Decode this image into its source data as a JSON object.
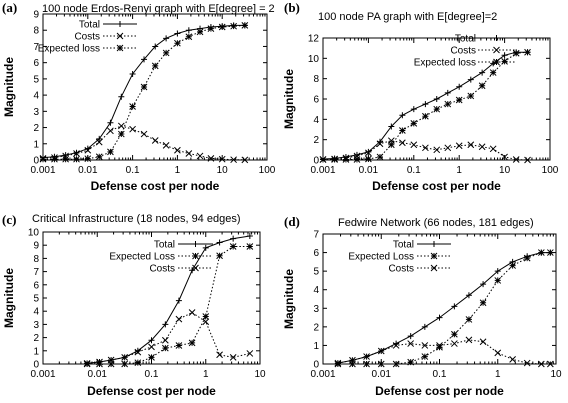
{
  "chart_data": [
    {
      "panel": "(a)",
      "type": "line",
      "title": "100 node Erdos-Renyi graph with E[degree] = 2",
      "xlabel": "Defense cost per node",
      "ylabel": "Magnitude",
      "xscale": "log",
      "xlim": [
        0.001,
        100
      ],
      "ylim": [
        0,
        9
      ],
      "xticks": [
        "0.001",
        "0.01",
        "0.1",
        "1",
        "10",
        "100"
      ],
      "yticks": [
        "0",
        "1",
        "2",
        "3",
        "4",
        "5",
        "6",
        "7",
        "8",
        "9"
      ],
      "legend_position": "top-left",
      "series": [
        {
          "name": "Total",
          "style": "solid",
          "marker": "plus",
          "x": [
            0.001,
            0.0018,
            0.0032,
            0.0056,
            0.01,
            0.018,
            0.032,
            0.056,
            0.1,
            0.18,
            0.32,
            0.56,
            1,
            1.8,
            3.2,
            5.6,
            10,
            18,
            32
          ],
          "y": [
            0.15,
            0.2,
            0.3,
            0.45,
            0.7,
            1.3,
            2.3,
            3.9,
            5.3,
            6.2,
            7.0,
            7.5,
            7.8,
            8.0,
            8.1,
            8.2,
            8.25,
            8.3,
            8.3
          ]
        },
        {
          "name": "Costs",
          "style": "dotted",
          "marker": "x",
          "x": [
            0.001,
            0.0018,
            0.0032,
            0.0056,
            0.01,
            0.018,
            0.032,
            0.056,
            0.1,
            0.18,
            0.32,
            0.56,
            1,
            1.8,
            3.2,
            5.6,
            10,
            18,
            32
          ],
          "y": [
            0.1,
            0.15,
            0.25,
            0.4,
            0.6,
            1.1,
            1.8,
            2.1,
            1.9,
            1.6,
            1.2,
            0.9,
            0.6,
            0.4,
            0.25,
            0.1,
            0.05,
            0.02,
            0.01
          ]
        },
        {
          "name": "Expected loss",
          "style": "dotted",
          "marker": "star",
          "x": [
            0.001,
            0.0018,
            0.0032,
            0.0056,
            0.01,
            0.018,
            0.032,
            0.056,
            0.1,
            0.18,
            0.32,
            0.56,
            1,
            1.8,
            3.2,
            5.6,
            10,
            18,
            32
          ],
          "y": [
            0.05,
            0.05,
            0.05,
            0.05,
            0.08,
            0.2,
            0.5,
            1.6,
            3.3,
            4.5,
            5.8,
            6.6,
            7.2,
            7.6,
            7.9,
            8.1,
            8.2,
            8.25,
            8.3
          ]
        }
      ]
    },
    {
      "panel": "(b)",
      "type": "line",
      "title": "100 node PA graph with E[degree]=2",
      "xlabel": "Defense cost per node",
      "ylabel": "Magnitude",
      "xscale": "log",
      "xlim": [
        0.001,
        100
      ],
      "ylim": [
        0,
        12
      ],
      "xticks": [
        "0.001",
        "0.01",
        "0.1",
        "1",
        "10",
        "100"
      ],
      "yticks": [
        "0",
        "2",
        "4",
        "6",
        "8",
        "10",
        "12"
      ],
      "legend_position": "top-right",
      "series": [
        {
          "name": "Total",
          "style": "solid",
          "marker": "plus",
          "x": [
            0.001,
            0.0018,
            0.0032,
            0.0056,
            0.01,
            0.018,
            0.032,
            0.056,
            0.1,
            0.18,
            0.32,
            0.56,
            1,
            1.8,
            3.2,
            5.6,
            10,
            18,
            32
          ],
          "y": [
            0.1,
            0.15,
            0.3,
            0.5,
            0.8,
            1.8,
            3.3,
            4.4,
            5.0,
            5.5,
            6.0,
            6.6,
            7.2,
            7.9,
            8.6,
            9.5,
            10.3,
            10.6,
            10.6
          ]
        },
        {
          "name": "Costs",
          "style": "dotted",
          "marker": "x",
          "x": [
            0.001,
            0.0018,
            0.0032,
            0.0056,
            0.01,
            0.018,
            0.032,
            0.056,
            0.1,
            0.18,
            0.32,
            0.56,
            1,
            1.8,
            3.2,
            5.6,
            10,
            18,
            32
          ],
          "y": [
            0.05,
            0.1,
            0.2,
            0.4,
            0.7,
            1.6,
            1.9,
            1.7,
            1.5,
            1.2,
            1.0,
            1.2,
            1.4,
            1.5,
            1.3,
            1.1,
            0.3,
            0.05,
            0.0
          ]
        },
        {
          "name": "Expected loss",
          "style": "dotted",
          "marker": "star",
          "x": [
            0.001,
            0.0018,
            0.0032,
            0.0056,
            0.01,
            0.018,
            0.032,
            0.056,
            0.1,
            0.18,
            0.32,
            0.56,
            1,
            1.8,
            3.2,
            5.6,
            10,
            18,
            32
          ],
          "y": [
            0.05,
            0.05,
            0.05,
            0.05,
            0.1,
            0.3,
            1.5,
            2.9,
            3.6,
            4.3,
            5.0,
            5.5,
            5.9,
            6.3,
            7.3,
            8.6,
            9.7,
            10.5,
            10.6
          ]
        }
      ]
    },
    {
      "panel": "(c)",
      "type": "line",
      "title": "Critical Infrastructure (18 nodes, 94 edges)",
      "xlabel": "Defense cost per node",
      "ylabel": "Magnitude",
      "xscale": "log",
      "xlim": [
        0.001,
        10
      ],
      "ylim": [
        0,
        10
      ],
      "xticks": [
        "0.001",
        "0.01",
        "0.1",
        "1",
        "10"
      ],
      "yticks": [
        "0",
        "1",
        "2",
        "3",
        "4",
        "5",
        "6",
        "7",
        "8",
        "9",
        "10"
      ],
      "legend_position": "top-left",
      "series": [
        {
          "name": "Total",
          "style": "solid",
          "marker": "plus",
          "x": [
            0.0065,
            0.011,
            0.018,
            0.032,
            0.056,
            0.1,
            0.18,
            0.32,
            0.56,
            1,
            1.8,
            3.2,
            6.5
          ],
          "y": [
            0.05,
            0.15,
            0.3,
            0.5,
            1.0,
            1.8,
            3.0,
            4.8,
            7.1,
            8.8,
            9.2,
            9.5,
            9.7
          ]
        },
        {
          "name": "Expected Loss",
          "style": "dotted",
          "marker": "star",
          "x": [
            0.0065,
            0.011,
            0.018,
            0.032,
            0.056,
            0.1,
            0.18,
            0.32,
            0.56,
            1,
            1.8,
            3.2,
            6.5
          ],
          "y": [
            0.0,
            0.0,
            0.0,
            0.0,
            0.1,
            0.5,
            1.2,
            1.4,
            1.6,
            3.6,
            8.2,
            8.9,
            8.9
          ]
        },
        {
          "name": "Costs",
          "style": "dotted",
          "marker": "x",
          "x": [
            0.0065,
            0.011,
            0.018,
            0.032,
            0.056,
            0.1,
            0.18,
            0.32,
            0.56,
            1,
            1.8,
            3.2,
            6.5
          ],
          "y": [
            0.05,
            0.15,
            0.3,
            0.5,
            0.9,
            1.3,
            1.8,
            3.4,
            3.9,
            3.2,
            0.7,
            0.5,
            0.8
          ]
        }
      ]
    },
    {
      "panel": "(d)",
      "type": "line",
      "title": "Fedwire Network (66 nodes, 181 edges)",
      "xlabel": "Defense cost per node",
      "ylabel": "Magnitude",
      "xscale": "log",
      "xlim": [
        0.001,
        10
      ],
      "ylim": [
        0,
        7
      ],
      "xticks": [
        "0.001",
        "0.01",
        "0.1",
        "1",
        "10"
      ],
      "yticks": [
        "0",
        "1",
        "2",
        "3",
        "4",
        "5",
        "6",
        "7"
      ],
      "legend_position": "top-left",
      "series": [
        {
          "name": "Total",
          "style": "solid",
          "marker": "plus",
          "x": [
            0.0018,
            0.0032,
            0.0056,
            0.01,
            0.018,
            0.032,
            0.056,
            0.1,
            0.18,
            0.32,
            0.56,
            1,
            1.8,
            3.2,
            5.6,
            8
          ],
          "y": [
            0.05,
            0.2,
            0.4,
            0.7,
            1.1,
            1.5,
            2.0,
            2.5,
            3.1,
            3.7,
            4.3,
            5.0,
            5.5,
            5.8,
            6.0,
            6.0
          ]
        },
        {
          "name": "Expected Loss",
          "style": "dotted",
          "marker": "star",
          "x": [
            0.0018,
            0.0032,
            0.0056,
            0.01,
            0.018,
            0.032,
            0.056,
            0.1,
            0.18,
            0.32,
            0.56,
            1,
            1.8,
            3.2,
            5.6,
            8
          ],
          "y": [
            0.0,
            0.0,
            0.0,
            0.0,
            0.0,
            0.1,
            0.4,
            0.9,
            1.6,
            2.4,
            3.3,
            4.5,
            5.3,
            5.7,
            6.0,
            6.0
          ]
        },
        {
          "name": "Costs",
          "style": "dotted",
          "marker": "x",
          "x": [
            0.0018,
            0.0032,
            0.0056,
            0.01,
            0.018,
            0.032,
            0.056,
            0.1,
            0.18,
            0.32,
            0.56,
            1,
            1.8,
            3.2,
            5.6,
            8
          ],
          "y": [
            0.05,
            0.2,
            0.4,
            0.7,
            1.0,
            1.1,
            1.0,
            1.0,
            1.1,
            1.3,
            1.2,
            0.6,
            0.25,
            0.05,
            0.0,
            0.0
          ]
        }
      ]
    }
  ]
}
